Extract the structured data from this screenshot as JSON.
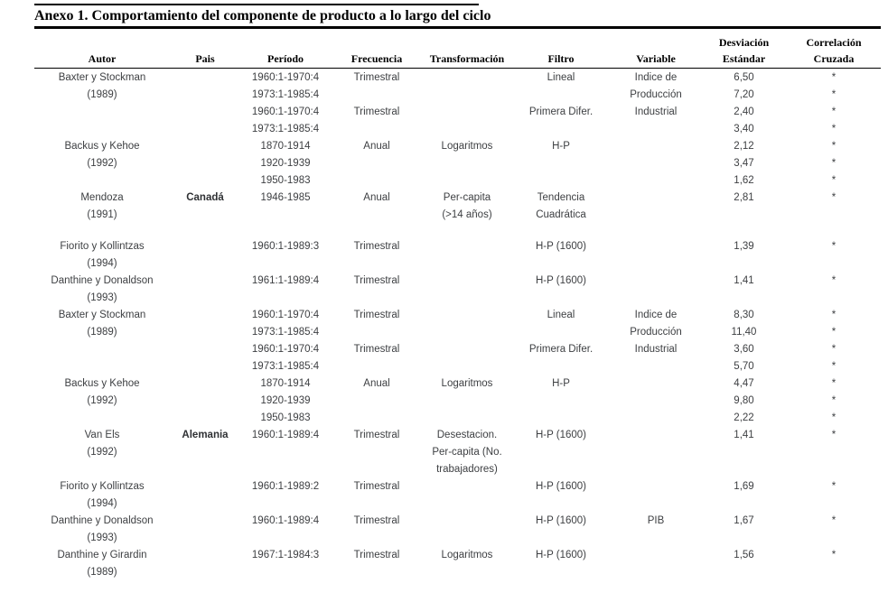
{
  "title": "Anexo 1. Comportamiento del componente de producto a lo largo del ciclo",
  "table": {
    "header_top": {
      "desviacion": "Desviación",
      "correlacion": "Correlación"
    },
    "columns": [
      "Autor",
      "Pais",
      "Período",
      "Frecuencia",
      "Transformación",
      "Filtro",
      "Variable",
      "Estándar",
      "Cruzada"
    ],
    "rows": [
      {
        "cells": [
          "Baxter y Stockman",
          "",
          "1960:1-1970:4",
          "Trimestral",
          "",
          "Lineal",
          "Indice de",
          "6,50",
          "*"
        ]
      },
      {
        "cells": [
          "(1989)",
          "",
          "1973:1-1985:4",
          "",
          "",
          "",
          "Producción",
          "7,20",
          "*"
        ]
      },
      {
        "cells": [
          "",
          "",
          "1960:1-1970:4",
          "Trimestral",
          "",
          "Primera Difer.",
          "Industrial",
          "2,40",
          "*"
        ]
      },
      {
        "cells": [
          "",
          "",
          "1973:1-1985:4",
          "",
          "",
          "",
          "",
          "3,40",
          "*"
        ]
      },
      {
        "cells": [
          "Backus y Kehoe",
          "",
          "1870-1914",
          "Anual",
          "Logaritmos",
          "H-P",
          "",
          "2,12",
          "*"
        ]
      },
      {
        "cells": [
          "(1992)",
          "",
          "1920-1939",
          "",
          "",
          "",
          "",
          "3,47",
          "*"
        ]
      },
      {
        "cells": [
          "",
          "",
          "1950-1983",
          "",
          "",
          "",
          "",
          "1,62",
          "*"
        ]
      },
      {
        "cells": [
          "Mendoza",
          "Canadá",
          "1946-1985",
          "Anual",
          "Per-capita",
          "Tendencia",
          "",
          "2,81",
          "*"
        ]
      },
      {
        "cells": [
          "(1991)",
          "",
          "",
          "",
          "(>14 años)",
          "Cuadrática",
          "",
          "",
          ""
        ]
      },
      {
        "type": "spacer"
      },
      {
        "cells": [
          "Fiorito y Kollintzas",
          "",
          "1960:1-1989:3",
          "Trimestral",
          "",
          "H-P (1600)",
          "",
          "1,39",
          "*"
        ]
      },
      {
        "cells": [
          "(1994)",
          "",
          "",
          "",
          "",
          "",
          "",
          "",
          ""
        ]
      },
      {
        "cells": [
          "Danthine y Donaldson",
          "",
          "1961:1-1989:4",
          "Trimestral",
          "",
          "H-P (1600)",
          "",
          "1,41",
          "*"
        ]
      },
      {
        "cells": [
          "(1993)",
          "",
          "",
          "",
          "",
          "",
          "",
          "",
          ""
        ]
      },
      {
        "cells": [
          "Baxter y Stockman",
          "",
          "1960:1-1970:4",
          "Trimestral",
          "",
          "Lineal",
          "Indice de",
          "8,30",
          "*"
        ]
      },
      {
        "cells": [
          "(1989)",
          "",
          "1973:1-1985:4",
          "",
          "",
          "",
          "Producción",
          "11,40",
          "*"
        ]
      },
      {
        "cells": [
          "",
          "",
          "1960:1-1970:4",
          "Trimestral",
          "",
          "Primera Difer.",
          "Industrial",
          "3,60",
          "*"
        ]
      },
      {
        "cells": [
          "",
          "",
          "1973:1-1985:4",
          "",
          "",
          "",
          "",
          "5,70",
          "*"
        ]
      },
      {
        "cells": [
          "Backus y Kehoe",
          "",
          "1870-1914",
          "Anual",
          "Logaritmos",
          "H-P",
          "",
          "4,47",
          "*"
        ]
      },
      {
        "cells": [
          "(1992)",
          "",
          "1920-1939",
          "",
          "",
          "",
          "",
          "9,80",
          "*"
        ]
      },
      {
        "cells": [
          "",
          "",
          "1950-1983",
          "",
          "",
          "",
          "",
          "2,22",
          "*"
        ]
      },
      {
        "cells": [
          "Van Els",
          "Alemania",
          "1960:1-1989:4",
          "Trimestral",
          "Desestacion.",
          "H-P (1600)",
          "",
          "1,41",
          "*"
        ]
      },
      {
        "cells": [
          "(1992)",
          "",
          "",
          "",
          "Per-capita (No.",
          "",
          "",
          "",
          ""
        ]
      },
      {
        "cells": [
          "",
          "",
          "",
          "",
          "trabajadores)",
          "",
          "",
          "",
          ""
        ]
      },
      {
        "cells": [
          "Fiorito y Kollintzas",
          "",
          "1960:1-1989:2",
          "Trimestral",
          "",
          "H-P (1600)",
          "",
          "1,69",
          "*"
        ]
      },
      {
        "cells": [
          "(1994)",
          "",
          "",
          "",
          "",
          "",
          "",
          "",
          ""
        ]
      },
      {
        "cells": [
          "Danthine y Donaldson",
          "",
          "1960:1-1989:4",
          "Trimestral",
          "",
          "H-P (1600)",
          "PIB",
          "1,67",
          "*"
        ]
      },
      {
        "cells": [
          "(1993)",
          "",
          "",
          "",
          "",
          "",
          "",
          "",
          ""
        ]
      },
      {
        "cells": [
          "Danthine y Girardin",
          "",
          "1967:1-1984:3",
          "Trimestral",
          "Logaritmos",
          "H-P (1600)",
          "",
          "1,56",
          "*"
        ]
      },
      {
        "cells": [
          "(1989)",
          "",
          "",
          "",
          "",
          "",
          "",
          "",
          ""
        ]
      }
    ]
  },
  "colors": {
    "background": "#ffffff",
    "rule": "#000000",
    "heading_text": "#000000",
    "body_text": "#3d3f42"
  }
}
